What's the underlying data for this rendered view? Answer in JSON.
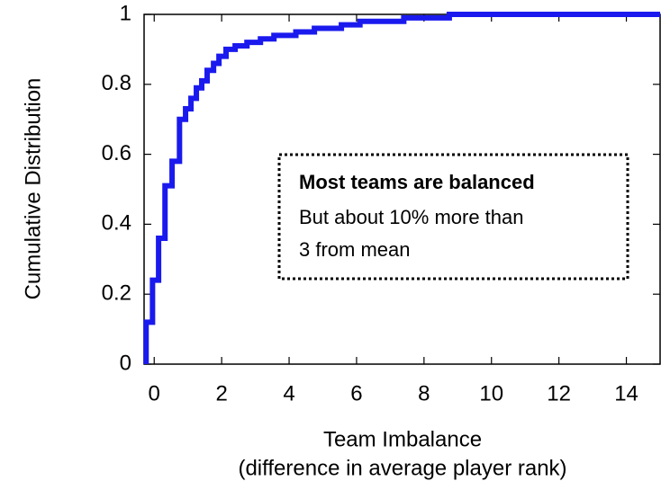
{
  "chart_data": {
    "type": "step",
    "xlabel": "Team Imbalance",
    "xlabel2": "(difference in average player rank)",
    "ylabel": "Cumulative Distribution",
    "annotation": {
      "title": "Most teams are balanced",
      "lines": [
        "But about 10% more than",
        "3 from mean"
      ]
    },
    "series": [
      {
        "color": "#1a1aee",
        "x": [
          -0.24,
          -0.24,
          -0.05,
          0.13,
          0.32,
          0.53,
          0.75,
          0.93,
          1.09,
          1.25,
          1.41,
          1.57,
          1.76,
          1.92,
          2.13,
          2.4,
          2.75,
          3.15,
          3.55,
          4.2,
          4.75,
          5.55,
          6.1,
          7.4,
          8.75,
          15
        ],
        "values": [
          0,
          0.12,
          0.24,
          0.36,
          0.51,
          0.58,
          0.7,
          0.73,
          0.76,
          0.79,
          0.81,
          0.84,
          0.86,
          0.88,
          0.9,
          0.91,
          0.92,
          0.93,
          0.94,
          0.95,
          0.96,
          0.97,
          0.98,
          0.99,
          1.0,
          1.0
        ]
      }
    ],
    "xlim": [
      -0.3,
      15
    ],
    "ylim": [
      0,
      1
    ],
    "xticks": [
      0,
      2,
      4,
      6,
      8,
      10,
      12,
      14
    ],
    "yticks": [
      0,
      0.2,
      0.4,
      0.6,
      0.8,
      1
    ]
  }
}
